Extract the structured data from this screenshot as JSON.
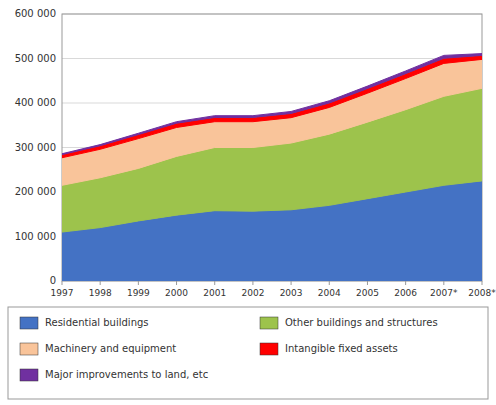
{
  "chart_data": {
    "type": "area",
    "stacked": true,
    "categories": [
      "1997",
      "1998",
      "1999",
      "2000",
      "2001",
      "2002",
      "2003",
      "2004",
      "2005",
      "2006",
      "2007*",
      "2008*"
    ],
    "series": [
      {
        "name": "Residential buildings",
        "color": "#4472c4",
        "values": [
          110000,
          120000,
          135000,
          148000,
          158000,
          157000,
          160000,
          170000,
          185000,
          200000,
          215000,
          225000
        ]
      },
      {
        "name": "Other buildings and structures",
        "color": "#9dc34c",
        "values": [
          105000,
          112000,
          118000,
          132000,
          142000,
          143000,
          150000,
          160000,
          172000,
          185000,
          200000,
          208000
        ]
      },
      {
        "name": "Machinery and equipment",
        "color": "#f9c49a",
        "values": [
          62000,
          64000,
          67000,
          65000,
          58000,
          58000,
          57000,
          60000,
          65000,
          70000,
          74000,
          65000
        ]
      },
      {
        "name": "Intangible fixed assets",
        "color": "#ff0000",
        "values": [
          7000,
          8000,
          9000,
          9500,
          9500,
          9500,
          9500,
          10000,
          10500,
          11000,
          11500,
          9000
        ]
      },
      {
        "name": "Major improvements to land, etc",
        "color": "#7030a0",
        "values": [
          2000,
          2500,
          3000,
          3500,
          4000,
          4000,
          4500,
          5000,
          5500,
          6000,
          6500,
          4000
        ]
      }
    ],
    "ylim": [
      0,
      600000
    ],
    "yticks": [
      0,
      {
        "value": 100000,
        "label": "100 000"
      },
      {
        "value": 200000,
        "label": "200 000"
      },
      {
        "value": 300000,
        "label": "300 000"
      },
      {
        "value": 400000,
        "label": "400 000"
      },
      {
        "value": 500000,
        "label": "500 000"
      },
      {
        "value": 600000,
        "label": "600 000"
      }
    ],
    "grid": true,
    "legend": "bottom"
  }
}
